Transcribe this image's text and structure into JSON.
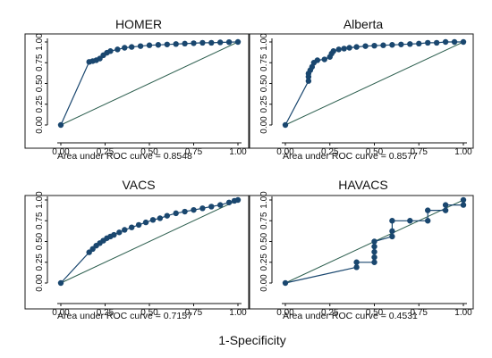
{
  "xlabel": "1-Specificity",
  "colors": {
    "curve": "#1a476f",
    "reference": "#2d5f4f",
    "frame": "#1a1a1a"
  },
  "chart_data": [
    {
      "type": "line",
      "title": "HOMER",
      "annotation": "Area under ROC curve = 0.8548",
      "xlim": [
        0,
        1
      ],
      "ylim": [
        0,
        1
      ],
      "xticks": [
        "0.00",
        "0.25",
        "0.50",
        "0.75",
        "1.00"
      ],
      "yticks": [
        "0.00",
        "0.25",
        "0.50",
        "0.75",
        "1.00"
      ],
      "grid": false,
      "series": [
        {
          "x": [
            0,
            0.16,
            0.18,
            0.2,
            0.22,
            0.24,
            0.26,
            0.28,
            0.32,
            0.36,
            0.4,
            0.45,
            0.5,
            0.55,
            0.6,
            0.65,
            0.7,
            0.75,
            0.8,
            0.85,
            0.9,
            0.95,
            1.0
          ],
          "y": [
            0,
            0.76,
            0.77,
            0.78,
            0.8,
            0.84,
            0.87,
            0.89,
            0.91,
            0.93,
            0.94,
            0.95,
            0.96,
            0.965,
            0.97,
            0.975,
            0.98,
            0.985,
            0.99,
            0.99,
            0.995,
            0.998,
            1.0
          ]
        },
        {
          "x": [
            0,
            1
          ],
          "y": [
            0,
            1
          ]
        }
      ]
    },
    {
      "type": "line",
      "title": "Alberta",
      "annotation": "Area under ROC curve = 0.8577",
      "xlim": [
        0,
        1
      ],
      "ylim": [
        0,
        1
      ],
      "xticks": [
        "0.00",
        "0.25",
        "0.50",
        "0.75",
        "1.00"
      ],
      "yticks": [
        "0.00",
        "0.25",
        "0.50",
        "0.75",
        "1.00"
      ],
      "grid": false,
      "series": [
        {
          "x": [
            0,
            0.13,
            0.13,
            0.13,
            0.14,
            0.15,
            0.16,
            0.18,
            0.22,
            0.25,
            0.26,
            0.27,
            0.3,
            0.33,
            0.36,
            0.4,
            0.45,
            0.5,
            0.55,
            0.6,
            0.65,
            0.7,
            0.75,
            0.8,
            0.85,
            0.9,
            0.95,
            1.0
          ],
          "y": [
            0,
            0.53,
            0.58,
            0.62,
            0.66,
            0.7,
            0.75,
            0.78,
            0.79,
            0.82,
            0.86,
            0.89,
            0.91,
            0.92,
            0.93,
            0.94,
            0.95,
            0.955,
            0.96,
            0.965,
            0.97,
            0.975,
            0.98,
            0.99,
            0.99,
            1.0,
            1.0,
            1.0
          ]
        },
        {
          "x": [
            0,
            1
          ],
          "y": [
            0,
            1
          ]
        }
      ]
    },
    {
      "type": "line",
      "title": "VACS",
      "annotation": "Area under ROC curve = 0.7157",
      "xlim": [
        0,
        1
      ],
      "ylim": [
        0,
        1
      ],
      "xticks": [
        "0.00",
        "0.25",
        "0.50",
        "0.75",
        "1.00"
      ],
      "yticks": [
        "0.00",
        "0.25",
        "0.50",
        "0.75",
        "1.00"
      ],
      "grid": false,
      "series": [
        {
          "x": [
            0,
            0.16,
            0.18,
            0.2,
            0.22,
            0.24,
            0.26,
            0.28,
            0.3,
            0.33,
            0.36,
            0.4,
            0.44,
            0.48,
            0.52,
            0.56,
            0.6,
            0.65,
            0.7,
            0.75,
            0.8,
            0.85,
            0.9,
            0.95,
            0.98,
            1.0
          ],
          "y": [
            0,
            0.37,
            0.41,
            0.45,
            0.48,
            0.51,
            0.54,
            0.56,
            0.58,
            0.61,
            0.64,
            0.67,
            0.7,
            0.73,
            0.76,
            0.78,
            0.81,
            0.84,
            0.86,
            0.88,
            0.9,
            0.92,
            0.94,
            0.97,
            0.99,
            1.0
          ]
        },
        {
          "x": [
            0,
            1
          ],
          "y": [
            0,
            1
          ]
        }
      ]
    },
    {
      "type": "line",
      "title": "HAVACS",
      "annotation": "Area under ROC curve = 0.4531",
      "xlim": [
        0,
        1
      ],
      "ylim": [
        0,
        1
      ],
      "xticks": [
        "0.00",
        "0.25",
        "0.50",
        "0.75",
        "1.00"
      ],
      "yticks": [
        "0.00",
        "0.25",
        "0.50",
        "0.75",
        "1.00"
      ],
      "grid": false,
      "series": [
        {
          "x": [
            0,
            0.4,
            0.4,
            0.5,
            0.5,
            0.5,
            0.5,
            0.5,
            0.6,
            0.6,
            0.6,
            0.7,
            0.8,
            0.8,
            0.9,
            0.9,
            1.0,
            1.0
          ],
          "y": [
            0,
            0.19,
            0.25,
            0.25,
            0.31,
            0.375,
            0.44,
            0.5,
            0.56,
            0.625,
            0.75,
            0.75,
            0.75,
            0.875,
            0.875,
            0.94,
            0.94,
            1.0
          ]
        },
        {
          "x": [
            0,
            1
          ],
          "y": [
            0,
            1
          ]
        }
      ]
    }
  ]
}
